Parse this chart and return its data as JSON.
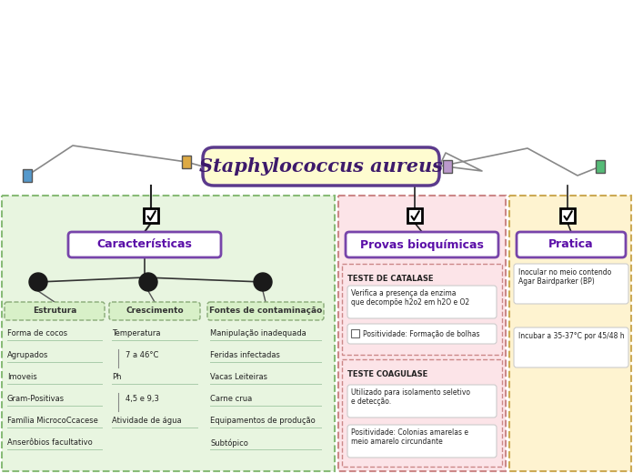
{
  "title": "Staphylococcus aureus",
  "title_bg": "#fefcd0",
  "title_border": "#5b3a8c",
  "title_color": "#3d1a6b",
  "bg_color": "#ffffff",
  "section1_title": "Características",
  "section1_title_color": "#5b0fa8",
  "section2_title": "Provas bioquímicas",
  "section2_title_color": "#5b0fa8",
  "section3_title": "Pratica",
  "section3_title_color": "#5b0fa8",
  "sub1_title": "Estrutura",
  "sub1_items": [
    "Forma de cocos",
    "Agrupados",
    "Imoveis",
    "Gram-Positivas",
    "Família MicrocoCcacese",
    "Anserôbios facultativo"
  ],
  "sub2_title": "Crescimento",
  "sub2_items": [
    "Temperatura",
    "7 a 46°C",
    "Ph",
    "4,5 e 9,3",
    "Atividade de água"
  ],
  "sub3_title": "Fontes de contaminação",
  "sub3_items": [
    "Manipulação inadequada",
    "Feridas infectadas",
    "Vacas Leiteiras",
    "Carne crua",
    "Equipamentos de produção",
    "Subtópico"
  ],
  "catalase_title": "TESTE DE CATALASE",
  "catalase_desc": "Verifica a presença da enzima\nque decompõe h2o2 em h2O e O2",
  "catalase_pos": "Positividade: Formação de bolhas",
  "coagulase_title": "TESTE COAGULASE",
  "coagulase_desc": "Utilizado para isolamento seletivo\ne detecção.",
  "coagulase_pos": "Positividade: Colonias amarelas e\nmeio amarelo circundante",
  "pratica_items": [
    "Inocular no meio contendo\nAgar Bairdparker (BP)",
    "Incubar a 35-37°C por 45/48 h"
  ]
}
